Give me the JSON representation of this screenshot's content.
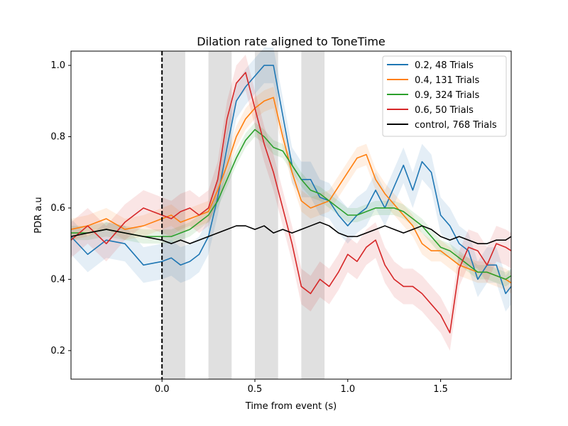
{
  "chart_data": {
    "type": "line",
    "title": "Dilation rate aligned to ToneTime",
    "xlabel": "Time from event (s)",
    "ylabel": "PDR a.u",
    "xlim": [
      -0.49,
      1.88
    ],
    "ylim": [
      0.12,
      1.04
    ],
    "xticks": [
      0.0,
      0.5,
      1.0,
      1.5
    ],
    "xtick_labels": [
      "0.0",
      "0.5",
      "1.0",
      "1.5"
    ],
    "yticks": [
      0.2,
      0.4,
      0.6,
      0.8,
      1.0
    ],
    "ytick_labels": [
      "0.2",
      "0.4",
      "0.6",
      "0.8",
      "1.0"
    ],
    "grid": false,
    "legend_position": "top-right",
    "event_line_x": 0.0,
    "shaded_intervals": [
      [
        0.0,
        0.125
      ],
      [
        0.25,
        0.375
      ],
      [
        0.5,
        0.625
      ],
      [
        0.75,
        0.875
      ]
    ],
    "series": [
      {
        "name": "0.2, 48 Trials",
        "color": "#1f77b4",
        "x": [
          -0.49,
          -0.4,
          -0.3,
          -0.2,
          -0.1,
          0.0,
          0.05,
          0.1,
          0.15,
          0.2,
          0.25,
          0.3,
          0.35,
          0.4,
          0.45,
          0.5,
          0.55,
          0.6,
          0.65,
          0.7,
          0.75,
          0.8,
          0.85,
          0.9,
          0.95,
          1.0,
          1.05,
          1.1,
          1.15,
          1.2,
          1.25,
          1.3,
          1.35,
          1.4,
          1.45,
          1.5,
          1.55,
          1.6,
          1.65,
          1.7,
          1.75,
          1.8,
          1.85,
          1.88
        ],
        "values": [
          0.52,
          0.47,
          0.51,
          0.5,
          0.44,
          0.45,
          0.46,
          0.44,
          0.45,
          0.47,
          0.52,
          0.63,
          0.77,
          0.9,
          0.94,
          0.97,
          1.0,
          1.0,
          0.86,
          0.72,
          0.68,
          0.68,
          0.63,
          0.62,
          0.58,
          0.55,
          0.58,
          0.6,
          0.65,
          0.6,
          0.66,
          0.72,
          0.65,
          0.73,
          0.7,
          0.58,
          0.55,
          0.5,
          0.48,
          0.4,
          0.44,
          0.44,
          0.36,
          0.38
        ],
        "band": 0.05
      },
      {
        "name": "0.4, 131 Trials",
        "color": "#ff7f0e",
        "x": [
          -0.49,
          -0.4,
          -0.3,
          -0.2,
          -0.1,
          0.0,
          0.05,
          0.1,
          0.15,
          0.2,
          0.25,
          0.3,
          0.35,
          0.4,
          0.45,
          0.5,
          0.55,
          0.6,
          0.65,
          0.7,
          0.75,
          0.8,
          0.85,
          0.9,
          0.95,
          1.0,
          1.05,
          1.1,
          1.15,
          1.2,
          1.25,
          1.3,
          1.35,
          1.4,
          1.45,
          1.5,
          1.55,
          1.6,
          1.65,
          1.7,
          1.75,
          1.8,
          1.85,
          1.88
        ],
        "values": [
          0.54,
          0.55,
          0.57,
          0.54,
          0.55,
          0.57,
          0.58,
          0.56,
          0.57,
          0.58,
          0.59,
          0.65,
          0.72,
          0.8,
          0.85,
          0.88,
          0.9,
          0.91,
          0.8,
          0.7,
          0.62,
          0.6,
          0.61,
          0.62,
          0.66,
          0.7,
          0.74,
          0.75,
          0.68,
          0.64,
          0.61,
          0.58,
          0.55,
          0.5,
          0.48,
          0.48,
          0.46,
          0.44,
          0.43,
          0.42,
          0.42,
          0.41,
          0.4,
          0.39
        ],
        "band": 0.03
      },
      {
        "name": "0.9, 324 Trials",
        "color": "#2ca02c",
        "x": [
          -0.49,
          -0.4,
          -0.3,
          -0.2,
          -0.1,
          0.0,
          0.05,
          0.1,
          0.15,
          0.2,
          0.25,
          0.3,
          0.35,
          0.4,
          0.45,
          0.5,
          0.55,
          0.6,
          0.65,
          0.7,
          0.75,
          0.8,
          0.85,
          0.9,
          0.95,
          1.0,
          1.05,
          1.1,
          1.15,
          1.2,
          1.25,
          1.3,
          1.35,
          1.4,
          1.45,
          1.5,
          1.55,
          1.6,
          1.65,
          1.7,
          1.75,
          1.8,
          1.85,
          1.88
        ],
        "values": [
          0.53,
          0.53,
          0.54,
          0.53,
          0.52,
          0.52,
          0.52,
          0.53,
          0.54,
          0.56,
          0.58,
          0.62,
          0.68,
          0.74,
          0.79,
          0.82,
          0.8,
          0.77,
          0.76,
          0.72,
          0.68,
          0.65,
          0.64,
          0.62,
          0.6,
          0.58,
          0.58,
          0.59,
          0.6,
          0.6,
          0.6,
          0.59,
          0.57,
          0.55,
          0.52,
          0.49,
          0.48,
          0.46,
          0.44,
          0.42,
          0.42,
          0.41,
          0.4,
          0.41
        ],
        "band": 0.02
      },
      {
        "name": "0.6, 50 Trials",
        "color": "#d62728",
        "x": [
          -0.49,
          -0.4,
          -0.3,
          -0.2,
          -0.1,
          0.0,
          0.05,
          0.1,
          0.15,
          0.2,
          0.25,
          0.3,
          0.35,
          0.4,
          0.45,
          0.5,
          0.55,
          0.6,
          0.65,
          0.7,
          0.75,
          0.8,
          0.85,
          0.9,
          0.95,
          1.0,
          1.05,
          1.1,
          1.15,
          1.2,
          1.25,
          1.3,
          1.35,
          1.4,
          1.45,
          1.5,
          1.55,
          1.6,
          1.65,
          1.7,
          1.75,
          1.8,
          1.85,
          1.88
        ],
        "values": [
          0.51,
          0.55,
          0.5,
          0.56,
          0.6,
          0.58,
          0.57,
          0.59,
          0.6,
          0.58,
          0.6,
          0.68,
          0.85,
          0.95,
          0.98,
          0.88,
          0.78,
          0.7,
          0.6,
          0.5,
          0.38,
          0.36,
          0.4,
          0.38,
          0.42,
          0.47,
          0.45,
          0.49,
          0.51,
          0.44,
          0.4,
          0.38,
          0.38,
          0.36,
          0.33,
          0.3,
          0.25,
          0.43,
          0.49,
          0.48,
          0.44,
          0.5,
          0.49,
          0.48
        ],
        "band": 0.05
      },
      {
        "name": "control, 768 Trials",
        "color": "#000000",
        "x": [
          -0.49,
          -0.4,
          -0.3,
          -0.2,
          -0.1,
          0.0,
          0.05,
          0.1,
          0.15,
          0.2,
          0.25,
          0.3,
          0.35,
          0.4,
          0.45,
          0.5,
          0.55,
          0.6,
          0.65,
          0.7,
          0.75,
          0.8,
          0.85,
          0.9,
          0.95,
          1.0,
          1.05,
          1.1,
          1.15,
          1.2,
          1.25,
          1.3,
          1.35,
          1.4,
          1.45,
          1.5,
          1.55,
          1.6,
          1.65,
          1.7,
          1.75,
          1.8,
          1.85,
          1.88
        ],
        "values": [
          0.52,
          0.53,
          0.54,
          0.53,
          0.52,
          0.51,
          0.5,
          0.51,
          0.5,
          0.51,
          0.52,
          0.53,
          0.54,
          0.55,
          0.55,
          0.54,
          0.55,
          0.53,
          0.54,
          0.53,
          0.54,
          0.55,
          0.56,
          0.55,
          0.53,
          0.52,
          0.52,
          0.53,
          0.54,
          0.55,
          0.54,
          0.53,
          0.54,
          0.55,
          0.54,
          0.52,
          0.51,
          0.52,
          0.51,
          0.5,
          0.5,
          0.51,
          0.51,
          0.52
        ],
        "band": 0.0
      }
    ]
  }
}
